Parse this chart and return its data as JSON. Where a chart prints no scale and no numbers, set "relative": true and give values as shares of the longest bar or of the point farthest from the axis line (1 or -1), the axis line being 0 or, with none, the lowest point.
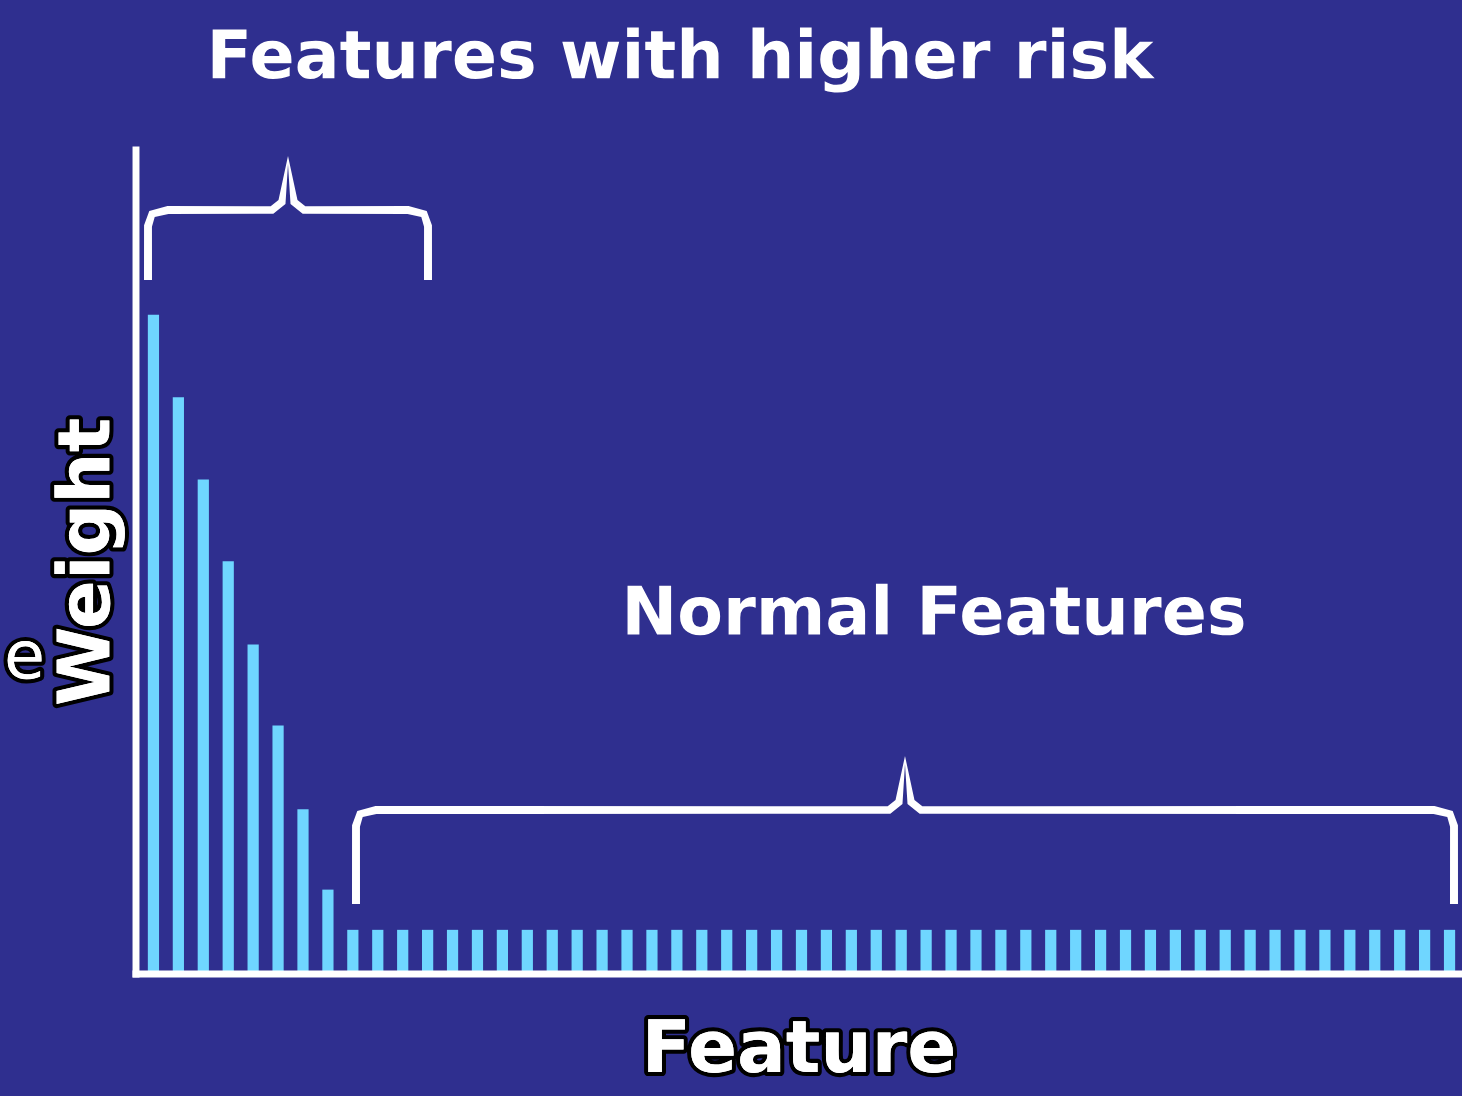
{
  "chart_data": {
    "type": "bar",
    "relative": true,
    "xlabel": "Feature",
    "ylabel": "Weight",
    "color": "#6fd6ff",
    "categories": [
      null,
      null,
      null,
      null,
      null,
      null,
      null,
      null,
      null,
      null,
      null,
      null,
      null,
      null,
      null,
      null,
      null,
      null,
      null,
      null,
      null,
      null,
      null,
      null,
      null,
      null,
      null,
      null,
      null,
      null,
      null,
      null,
      null,
      null,
      null,
      null,
      null,
      null,
      null,
      null,
      null,
      null,
      null,
      null,
      null,
      null,
      null,
      null,
      null,
      null,
      null,
      null,
      null
    ],
    "values": [
      1,
      0.875,
      0.75,
      0.626,
      0.5,
      0.377,
      0.25,
      0.128,
      0.067,
      0.067,
      0.067,
      0.067,
      0.067,
      0.067,
      0.067,
      0.067,
      0.067,
      0.067,
      0.067,
      0.067,
      0.067,
      0.067,
      0.067,
      0.067,
      0.067,
      0.067,
      0.067,
      0.067,
      0.067,
      0.067,
      0.067,
      0.067,
      0.067,
      0.067,
      0.067,
      0.067,
      0.067,
      0.067,
      0.067,
      0.067,
      0.067,
      0.067,
      0.067,
      0.067,
      0.067,
      0.067,
      0.067,
      0.067,
      0.067,
      0.067,
      0.067,
      0.067,
      0.067
    ],
    "annotations": [
      "Features with higher risk",
      "Normal Features",
      "e"
    ]
  }
}
